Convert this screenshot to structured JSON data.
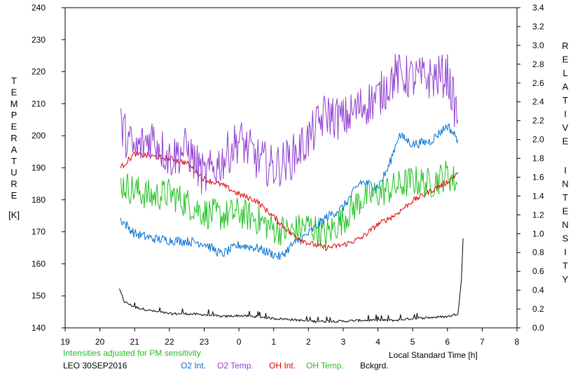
{
  "chart_data": {
    "type": "line",
    "title": "",
    "xlabel": "Local Standard Time [h]",
    "ylabel_left": "TEMPERATURE",
    "ylabel_left_unit": "[K]",
    "ylabel_right": "RELATIVE INTENSITY",
    "x_ticks": [
      "19",
      "20",
      "21",
      "22",
      "23",
      "0",
      "1",
      "2",
      "3",
      "4",
      "5",
      "6",
      "7",
      "8"
    ],
    "x_range": [
      19,
      32
    ],
    "y_left_ticks": [
      "140",
      "150",
      "160",
      "170",
      "180",
      "190",
      "200",
      "210",
      "220",
      "230",
      "240"
    ],
    "y_left_range": [
      140,
      240
    ],
    "y_right_ticks": [
      "0.0",
      "0.2",
      "0.4",
      "0.6",
      "0.8",
      "1.0",
      "1.2",
      "1.4",
      "1.6",
      "1.8",
      "2.0",
      "2.2",
      "2.4",
      "2.6",
      "2.8",
      "3.0",
      "3.2",
      "3.4"
    ],
    "y_right_range": [
      0,
      3.4
    ],
    "grid": false,
    "note": "Intensities adjusted for PM sensitivity",
    "station": "LEO 30SEP2016",
    "legend_position": "bottom",
    "series": [
      {
        "name": "O2 Int.",
        "color": "#0070d0",
        "axis": "right",
        "x": [
          20.6,
          21.0,
          21.5,
          22.0,
          22.5,
          23.0,
          23.5,
          24.0,
          24.5,
          25.0,
          25.2,
          25.5,
          26.0,
          26.5,
          27.0,
          27.5,
          28.0,
          28.3,
          28.6,
          29.0,
          29.5,
          30.0,
          30.3
        ],
        "y": [
          1.15,
          1.0,
          0.95,
          0.93,
          0.92,
          0.9,
          0.78,
          0.88,
          0.85,
          0.78,
          0.75,
          0.87,
          1.0,
          1.17,
          1.28,
          1.55,
          1.5,
          1.7,
          2.05,
          1.95,
          1.98,
          2.15,
          2.0
        ]
      },
      {
        "name": "O2 Temp.",
        "color": "#9040d0",
        "axis": "left",
        "x": [
          20.6,
          21.0,
          21.5,
          22.0,
          22.5,
          23.0,
          23.5,
          24.0,
          24.5,
          25.0,
          25.5,
          26.0,
          26.5,
          27.0,
          27.5,
          28.0,
          28.5,
          29.0,
          29.5,
          30.0,
          30.3
        ],
        "y": [
          203,
          195,
          200,
          193,
          196,
          187,
          192,
          199,
          193,
          190,
          193,
          199,
          207,
          205,
          209,
          212,
          219,
          218,
          218,
          219,
          205
        ]
      },
      {
        "name": "OH Int.",
        "color": "#e00000",
        "axis": "right",
        "x": [
          20.6,
          21.0,
          21.5,
          22.0,
          22.5,
          23.0,
          23.5,
          24.0,
          24.5,
          25.0,
          25.5,
          26.0,
          26.5,
          27.0,
          27.5,
          28.0,
          28.5,
          29.0,
          29.5,
          30.0,
          30.3
        ],
        "y": [
          1.7,
          1.85,
          1.82,
          1.8,
          1.75,
          1.58,
          1.52,
          1.42,
          1.35,
          1.18,
          1.0,
          0.9,
          0.85,
          0.88,
          0.95,
          1.1,
          1.2,
          1.35,
          1.45,
          1.55,
          1.65
        ]
      },
      {
        "name": "OH Temp.",
        "color": "#20c020",
        "axis": "left",
        "x": [
          20.6,
          21.0,
          21.5,
          22.0,
          22.5,
          23.0,
          23.5,
          24.0,
          24.5,
          25.0,
          25.5,
          26.0,
          26.5,
          27.0,
          27.5,
          28.0,
          28.5,
          29.0,
          29.5,
          30.0,
          30.3
        ],
        "y": [
          185,
          183,
          181,
          182,
          179,
          176,
          175,
          176,
          174,
          171,
          170,
          172,
          169,
          174,
          180,
          182,
          184,
          186,
          185,
          188,
          185
        ]
      },
      {
        "name": "Bckgrd.",
        "color": "#000000",
        "axis": "right",
        "x": [
          20.55,
          20.7,
          21.0,
          21.5,
          22.0,
          22.5,
          23.0,
          23.5,
          24.0,
          24.5,
          25.0,
          25.5,
          26.0,
          26.5,
          27.0,
          27.5,
          28.0,
          28.5,
          29.0,
          29.5,
          30.0,
          30.3,
          30.4,
          30.45
        ],
        "y": [
          0.42,
          0.28,
          0.22,
          0.18,
          0.15,
          0.15,
          0.14,
          0.12,
          0.13,
          0.12,
          0.1,
          0.09,
          0.07,
          0.07,
          0.07,
          0.08,
          0.08,
          0.08,
          0.1,
          0.11,
          0.12,
          0.15,
          0.5,
          0.95
        ]
      }
    ]
  }
}
